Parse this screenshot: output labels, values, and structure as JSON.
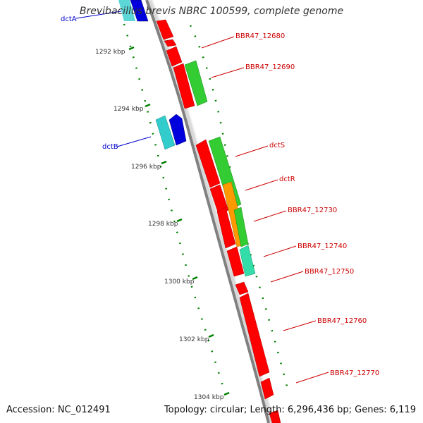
{
  "title": "Brevibacillus brevis NBRC 100599, complete genome",
  "footer": {
    "accession": "Accession: NC_012491",
    "summary": "Topology: circular; Length: 6,296,436 bp; Genes: 6,119"
  },
  "ticks": [
    {
      "label": "1292 kbp",
      "kbp": 1292
    },
    {
      "label": "1294 kbp",
      "kbp": 1294
    },
    {
      "label": "1296 kbp",
      "kbp": 1296
    },
    {
      "label": "1298 kbp",
      "kbp": 1298
    },
    {
      "label": "1300 kbp",
      "kbp": 1300
    },
    {
      "label": "1302 kbp",
      "kbp": 1302
    },
    {
      "label": "1304 kbp",
      "kbp": 1304
    }
  ],
  "gene_labels_red": [
    "BBR47_12680",
    "BBR47_12690",
    "dctS",
    "dctR",
    "BBR47_12730",
    "BBR47_12740",
    "BBR47_12750",
    "BBR47_12760",
    "BBR47_12770"
  ],
  "gene_labels_blue": [
    "dctA",
    "dctB"
  ],
  "colors": {
    "backbone": "#808080",
    "red_gene": "#ff0000",
    "green_gene": "#33cc33",
    "orange_gene": "#ff9900",
    "teal_gene": "#33ddaa",
    "cyan_gene": "#33cccc",
    "blue_gene": "#0000dd",
    "tick": "#008000",
    "label_red": "#cc0000",
    "label_blue": "#0000cc"
  }
}
